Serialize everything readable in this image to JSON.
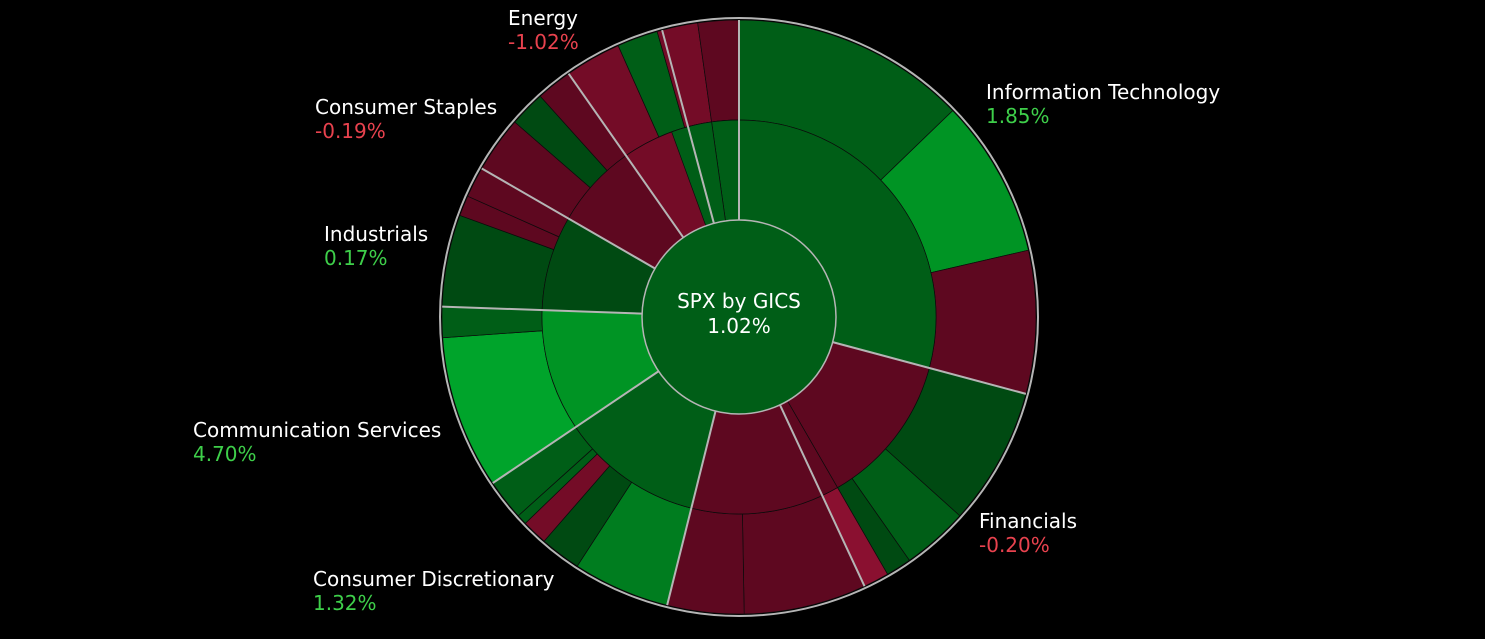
{
  "chart_data": {
    "type": "sunburst",
    "title": "SPX by GICS",
    "value": "1.02%",
    "sectors": [
      {
        "name": "Information Technology",
        "change": "1.85%",
        "sign": "pos"
      },
      {
        "name": "Financials",
        "change": "-0.20%",
        "sign": "neg"
      },
      {
        "name": "Consumer Discretionary",
        "change": "1.32%",
        "sign": "pos"
      },
      {
        "name": "Communication Services",
        "change": "4.70%",
        "sign": "pos"
      },
      {
        "name": "Industrials",
        "change": "0.17%",
        "sign": "pos"
      },
      {
        "name": "Consumer Staples",
        "change": "-0.19%",
        "sign": "neg"
      },
      {
        "name": "Energy",
        "change": "-1.02%",
        "sign": "neg"
      }
    ]
  },
  "colors": {
    "positive_text": "#3ecf4a",
    "negative_text": "#e8424e",
    "background": "#000000",
    "separator": "#b5b5b5"
  }
}
